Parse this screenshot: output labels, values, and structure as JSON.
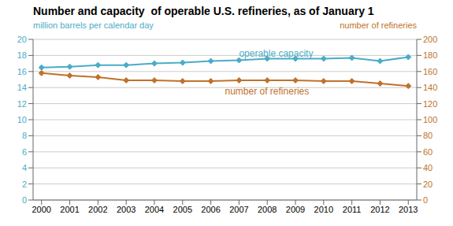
{
  "chart_data": {
    "type": "line",
    "title": "Number and capacity  of operable U.S. refineries, as of January 1",
    "y_label": "million barrels per calendar day",
    "y2_label": "number of refineries",
    "x": [
      2000,
      2001,
      2002,
      2003,
      2004,
      2005,
      2006,
      2007,
      2008,
      2009,
      2010,
      2011,
      2012,
      2013
    ],
    "xlim": [
      1999.7,
      2013.3
    ],
    "xticks": [
      2000,
      2001,
      2002,
      2003,
      2004,
      2005,
      2006,
      2007,
      2008,
      2009,
      2010,
      2011,
      2012,
      2013
    ],
    "ylim": [
      0,
      20
    ],
    "yticks": [
      0,
      2,
      4,
      6,
      8,
      10,
      12,
      14,
      16,
      18,
      20
    ],
    "y2lim": [
      0,
      200
    ],
    "y2ticks": [
      0,
      20,
      40,
      60,
      80,
      100,
      120,
      140,
      160,
      180,
      200
    ],
    "grid": true,
    "legend": false,
    "series": [
      {
        "name": "operable capacity",
        "color": "#4BACC6",
        "marker": "diamond",
        "values": [
          16.5,
          16.6,
          16.8,
          16.8,
          17.0,
          17.1,
          17.3,
          17.4,
          17.6,
          17.6,
          17.6,
          17.7,
          17.3,
          17.8
        ]
      },
      {
        "name": "number of refineries",
        "color": "#C0722A",
        "marker": "diamond",
        "axis": "y2",
        "values": [
          158,
          155,
          153,
          149,
          149,
          148,
          148,
          149,
          149,
          149,
          148,
          148,
          145,
          142
        ]
      }
    ],
    "annotations": [
      {
        "text": "operable capacity",
        "x": 2007.0,
        "y": 17.55,
        "color": "#4BACC6"
      },
      {
        "text": "number of refineries",
        "x": 2006.5,
        "y": 14.0,
        "color": "#C0722A"
      }
    ]
  }
}
